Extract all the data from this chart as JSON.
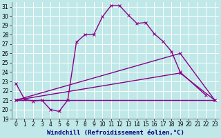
{
  "xlabel": "Windchill (Refroidissement éolien,°C)",
  "bg_color": "#c0e8e8",
  "grid_color": "#ffffff",
  "xlim": [
    -0.5,
    23.5
  ],
  "ylim": [
    19,
    31.5
  ],
  "yticks": [
    19,
    20,
    21,
    22,
    23,
    24,
    25,
    26,
    27,
    28,
    29,
    30,
    31
  ],
  "xticks": [
    0,
    1,
    2,
    3,
    4,
    5,
    6,
    7,
    8,
    9,
    10,
    11,
    12,
    13,
    14,
    15,
    16,
    17,
    18,
    19,
    20,
    21,
    22,
    23
  ],
  "series": [
    {
      "x": [
        0,
        1,
        2,
        3,
        4,
        5,
        6,
        7,
        8,
        9,
        10,
        11,
        12,
        13,
        14,
        15,
        16,
        17,
        18,
        19,
        22
      ],
      "y": [
        22.8,
        21.1,
        20.9,
        21.0,
        20.0,
        19.8,
        21.0,
        27.2,
        28.0,
        28.0,
        29.9,
        31.1,
        31.1,
        30.1,
        29.2,
        29.3,
        28.1,
        27.3,
        26.2,
        24.0,
        21.5
      ],
      "color": "#880088",
      "lw": 1.0,
      "marker": true
    },
    {
      "x": [
        0,
        19,
        23
      ],
      "y": [
        21.0,
        26.0,
        21.0
      ],
      "color": "#880088",
      "lw": 1.0,
      "marker": true
    },
    {
      "x": [
        0,
        19,
        23
      ],
      "y": [
        21.0,
        23.9,
        21.0
      ],
      "color": "#880088",
      "lw": 1.0,
      "marker": true
    },
    {
      "x": [
        0,
        23
      ],
      "y": [
        21.0,
        21.0
      ],
      "color": "#880088",
      "lw": 1.0,
      "marker": false
    }
  ],
  "xlabel_fontsize": 6.5,
  "tick_fontsize": 5.5
}
